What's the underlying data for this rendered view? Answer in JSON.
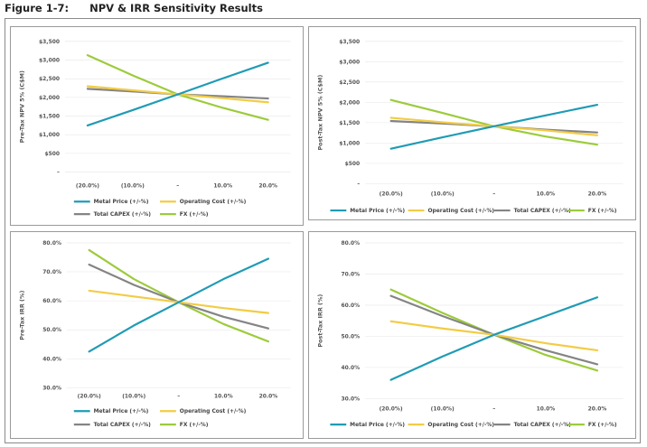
{
  "figure_title": "Figure 1-7:  NPV & IRR Sensitivity Results",
  "colors": {
    "metal_price": "#1F9BB5",
    "operating_cost": "#F2CC45",
    "total_capex": "#848484",
    "fx": "#9CCB3B"
  },
  "chart_data": [
    {
      "type": "line",
      "title": "",
      "xlabel": "",
      "ylabel": "Pre-Tax NPV 5% (C$M)",
      "categories": [
        "(20.0%)",
        "(10.0%)",
        "–",
        "10.0%",
        "20.0%"
      ],
      "y_ticks": [
        "–",
        "$500",
        "$1,000",
        "$1,500",
        "$2,000",
        "$2,500",
        "$3,000",
        "$3,500"
      ],
      "ylim": [
        0,
        3500
      ],
      "series": [
        {
          "name": "Metal Price (+/-%)",
          "color_key": "metal_price",
          "values": [
            1250,
            1660,
            2080,
            2510,
            2930
          ]
        },
        {
          "name": "Operating Cost (+/-%)",
          "color_key": "operating_cost",
          "values": [
            2300,
            2190,
            2080,
            1980,
            1870
          ]
        },
        {
          "name": "Total CAPEX (+/-%)",
          "color_key": "total_capex",
          "values": [
            2230,
            2160,
            2080,
            2030,
            1970
          ]
        },
        {
          "name": "FX (+/-%)",
          "color_key": "fx",
          "values": [
            3130,
            2590,
            2080,
            1720,
            1400
          ]
        }
      ]
    },
    {
      "type": "line",
      "title": "",
      "xlabel": "",
      "ylabel": "Post-Tax NPV 5% (C$M)",
      "categories": [
        "(20.0%)",
        "(10.0%)",
        "–",
        "10.0%",
        "20.0%"
      ],
      "y_ticks": [
        "–",
        "$500",
        "$1,000",
        "$1,500",
        "$2,000",
        "$2,500",
        "$3,000",
        "$3,500"
      ],
      "ylim": [
        0,
        3500
      ],
      "series": [
        {
          "name": "Metal Price (+/-%)",
          "color_key": "metal_price",
          "values": [
            860,
            1140,
            1410,
            1680,
            1940
          ]
        },
        {
          "name": "Operating Cost (+/-%)",
          "color_key": "operating_cost",
          "values": [
            1620,
            1510,
            1410,
            1310,
            1190
          ]
        },
        {
          "name": "Total CAPEX (+/-%)",
          "color_key": "total_capex",
          "values": [
            1540,
            1480,
            1410,
            1330,
            1260
          ]
        },
        {
          "name": "FX (+/-%)",
          "color_key": "fx",
          "values": [
            2060,
            1740,
            1410,
            1160,
            960
          ]
        }
      ]
    },
    {
      "type": "line",
      "title": "",
      "xlabel": "",
      "ylabel": "Pre-Tax IRR (%)",
      "categories": [
        "(20.0%)",
        "(10.0%)",
        "–",
        "10.0%",
        "20.0%"
      ],
      "y_ticks": [
        "30.0%",
        "40.0%",
        "50.0%",
        "60.0%",
        "70.0%",
        "80.0%"
      ],
      "ylim": [
        30,
        80
      ],
      "series": [
        {
          "name": "Metal Price (+/-%)",
          "color_key": "metal_price",
          "values": [
            42.5,
            51.5,
            59.5,
            67.5,
            74.5
          ]
        },
        {
          "name": "Operating Cost (+/-%)",
          "color_key": "operating_cost",
          "values": [
            63.5,
            61.5,
            59.5,
            57.5,
            55.8
          ]
        },
        {
          "name": "Total CAPEX (+/-%)",
          "color_key": "total_capex",
          "values": [
            72.5,
            65.5,
            59.5,
            54.5,
            50.5
          ]
        },
        {
          "name": "FX (+/-%)",
          "color_key": "fx",
          "values": [
            77.5,
            67.5,
            59.5,
            52.0,
            46.0
          ]
        }
      ]
    },
    {
      "type": "line",
      "title": "",
      "xlabel": "",
      "ylabel": "Post-Tax IRR (%)",
      "categories": [
        "(20.0%)",
        "(10.0%)",
        "–",
        "10.0%",
        "20.0%"
      ],
      "y_ticks": [
        "30.0%",
        "40.0%",
        "50.0%",
        "60.0%",
        "70.0%",
        "80.0%"
      ],
      "ylim": [
        30,
        80
      ],
      "series": [
        {
          "name": "Metal Price (+/-%)",
          "color_key": "metal_price",
          "values": [
            36.0,
            43.5,
            50.5,
            56.5,
            62.5
          ]
        },
        {
          "name": "Operating Cost (+/-%)",
          "color_key": "operating_cost",
          "values": [
            54.8,
            52.5,
            50.5,
            47.8,
            45.5
          ]
        },
        {
          "name": "Total CAPEX (+/-%)",
          "color_key": "total_capex",
          "values": [
            63.0,
            56.5,
            50.5,
            45.5,
            41.0
          ]
        },
        {
          "name": "FX (+/-%)",
          "color_key": "fx",
          "values": [
            65.0,
            57.5,
            50.5,
            44.0,
            39.0
          ]
        }
      ]
    }
  ]
}
